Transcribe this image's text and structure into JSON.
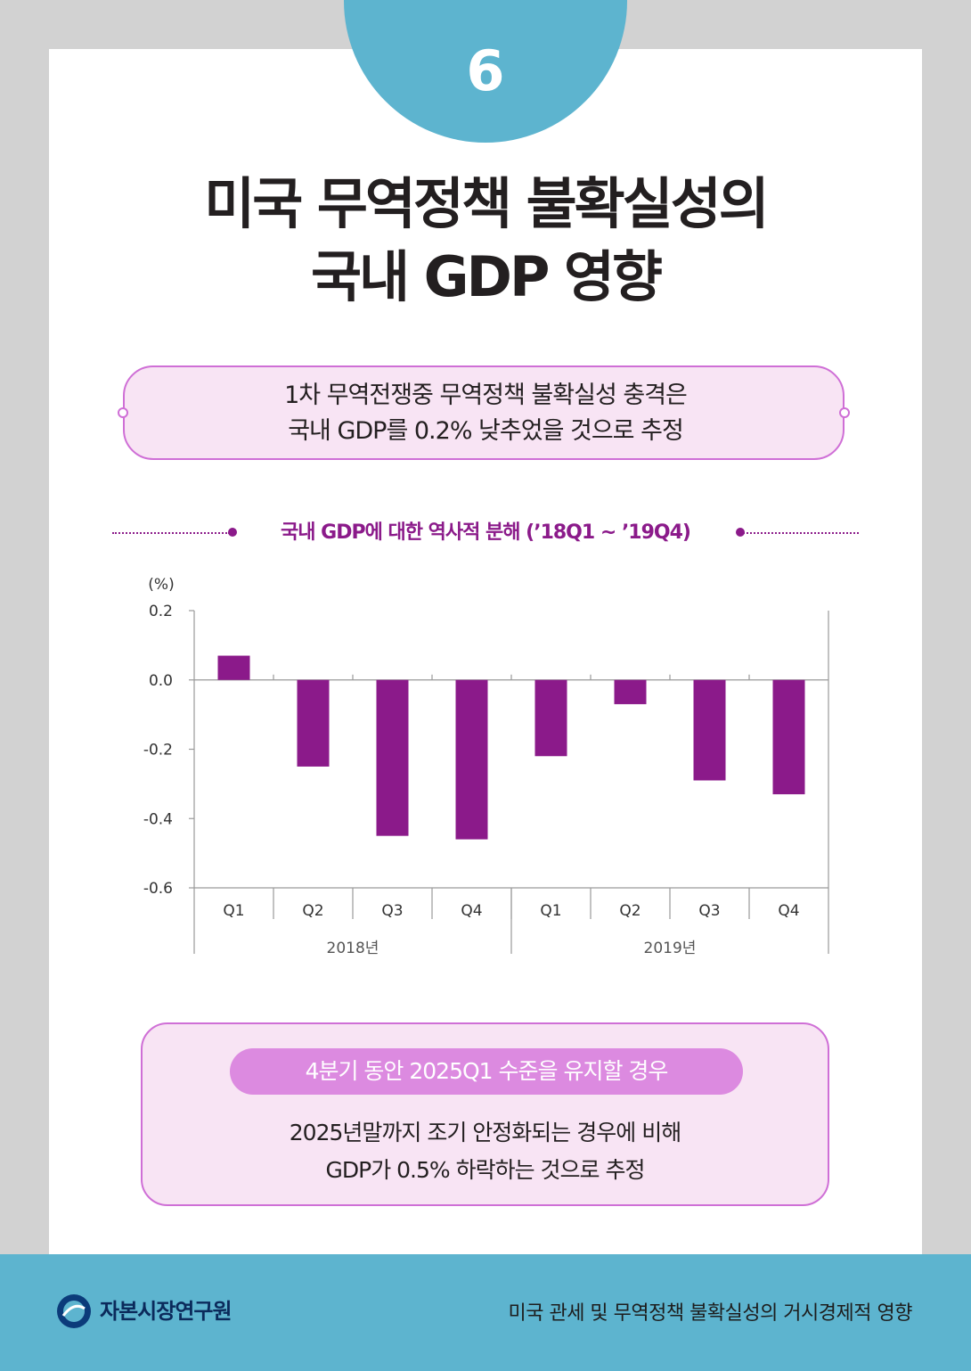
{
  "badge": {
    "number": "6"
  },
  "title": {
    "line1": "미국 무역정책 불확실성의",
    "line2": "국내 GDP 영향"
  },
  "summary": {
    "line1": "1차 무역전쟁중 무역정책 불확실성 충격은",
    "line2": "국내 GDP를 0.2% 낮추었을 것으로 추정"
  },
  "chart_title": "국내 GDP에 대한 역사적 분해 (’18Q1 ~ ’19Q4)",
  "chart_data": {
    "type": "bar",
    "ylabel": "(%)",
    "ylim": [
      -0.6,
      0.2
    ],
    "yticks": [
      0.2,
      0.0,
      -0.2,
      -0.4,
      -0.6
    ],
    "ytick_labels": [
      "0.2",
      "0.0",
      "-0.2",
      "-0.4",
      "-0.6"
    ],
    "categories": [
      "Q1",
      "Q2",
      "Q3",
      "Q4",
      "Q1",
      "Q2",
      "Q3",
      "Q4"
    ],
    "groups": [
      {
        "label": "2018년",
        "span": 4
      },
      {
        "label": "2019년",
        "span": 4
      }
    ],
    "values": [
      0.07,
      -0.25,
      -0.45,
      -0.46,
      -0.22,
      -0.07,
      -0.29,
      -0.33
    ],
    "bar_color": "#8b1a8a",
    "grid": false
  },
  "scenario": {
    "pill": "4분기 동안 2025Q1 수준을 유지할 경우",
    "line1": "2025년말까지 조기 안정화되는 경우에 비해",
    "line2": "GDP가 0.5% 하락하는 것으로 추정"
  },
  "footer": {
    "org": "자본시장연구원",
    "report": "미국 관세 및 무역정책 불확실성의 거시경제적 영향"
  },
  "colors": {
    "accent_blue": "#5db4cf",
    "accent_purple": "#8b1a8a",
    "box_border": "#cf6fd6",
    "box_fill": "#f8e4f4"
  }
}
